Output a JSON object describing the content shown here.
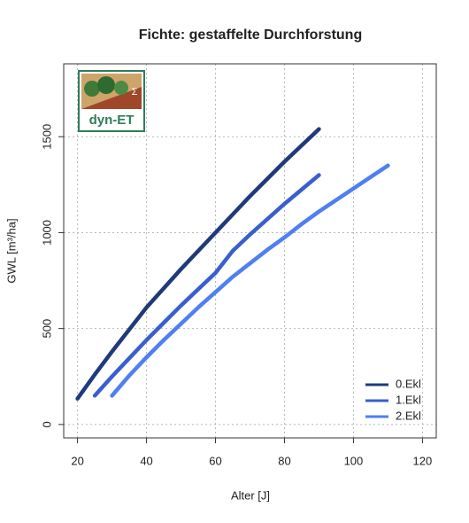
{
  "chart_data": {
    "type": "line",
    "title": "Fichte: gestaffelte Durchforstung",
    "x_label": "Alter [J]",
    "y_label": "GWL [m³/ha]",
    "logo": {
      "text": "dyn-ET",
      "symbol": "Σ"
    },
    "xlim": [
      16,
      124
    ],
    "xticks": [
      20,
      40,
      60,
      80,
      100,
      120
    ],
    "ylim": [
      -70,
      1880
    ],
    "yticks": [
      0,
      500,
      1000,
      1500
    ],
    "grid": true,
    "legend": "bottom-right",
    "series": [
      {
        "name": "0.Ekl",
        "color": "#1f3a7a",
        "x": [
          20,
          25,
          30,
          35,
          40,
          45,
          50,
          55,
          60,
          65,
          70,
          75,
          80,
          85,
          90
        ],
        "values": [
          135,
          260,
          380,
          495,
          610,
          710,
          810,
          905,
          1000,
          1095,
          1190,
          1280,
          1370,
          1455,
          1540
        ]
      },
      {
        "name": "1.Ekl",
        "color": "#3a5fcd",
        "x": [
          25,
          30,
          35,
          40,
          45,
          50,
          55,
          60,
          65,
          70,
          75,
          80,
          85,
          90
        ],
        "values": [
          150,
          250,
          345,
          440,
          530,
          620,
          705,
          790,
          905,
          990,
          1070,
          1150,
          1225,
          1300
        ]
      },
      {
        "name": "2.Ekl",
        "color": "#4f7ff0",
        "x": [
          30,
          35,
          40,
          45,
          50,
          55,
          60,
          65,
          70,
          75,
          80,
          85,
          90,
          95,
          100,
          105,
          110
        ],
        "values": [
          150,
          255,
          350,
          440,
          525,
          610,
          690,
          770,
          840,
          910,
          975,
          1045,
          1110,
          1170,
          1230,
          1290,
          1350
        ]
      }
    ]
  }
}
